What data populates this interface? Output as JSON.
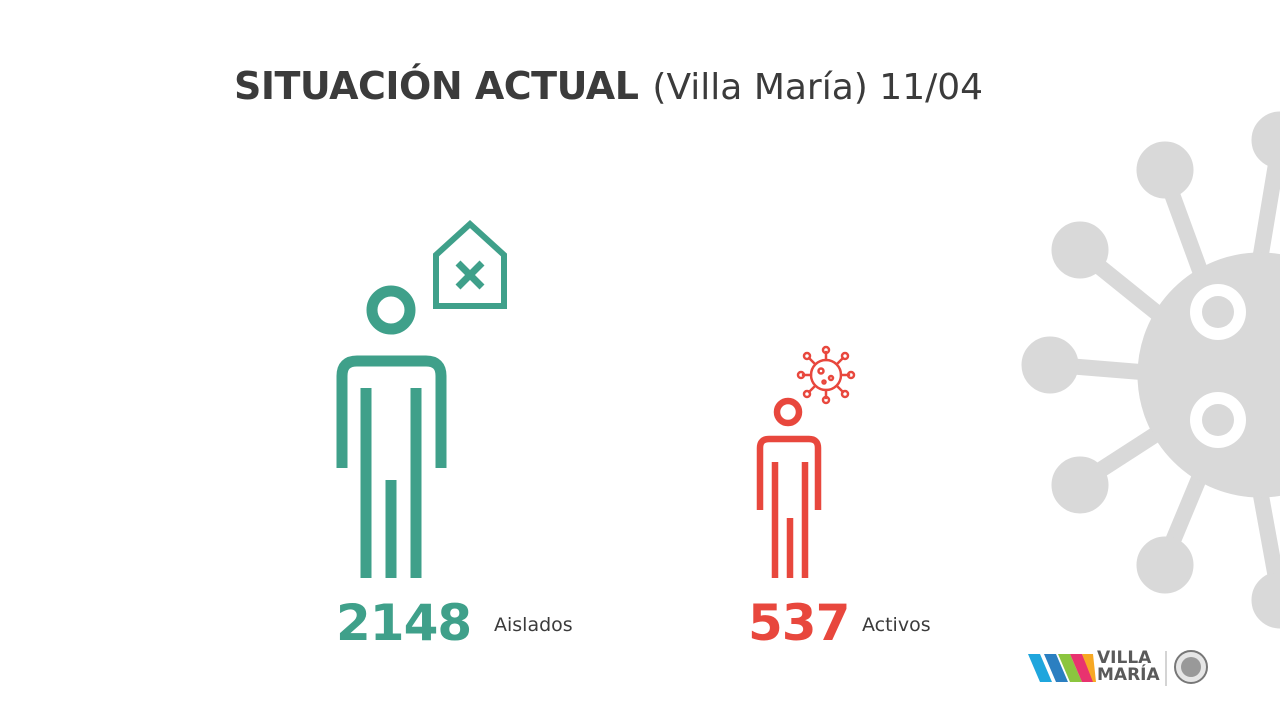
{
  "title": {
    "bold": "SITUACIÓN ACTUAL",
    "rest": "(Villa María) 11/04"
  },
  "stats": [
    {
      "value": "2148",
      "label": "Aislados",
      "color": "#3fa08a",
      "icon": "isolated-person-house-icon"
    },
    {
      "value": "537",
      "label": "Activos",
      "color": "#e8473d",
      "icon": "infected-person-virus-icon"
    }
  ],
  "logo": {
    "line1": "VILLA",
    "line2": "MARÍA"
  },
  "colors": {
    "text": "#3b3b3b",
    "virus_bg": "#d9d9d9"
  }
}
